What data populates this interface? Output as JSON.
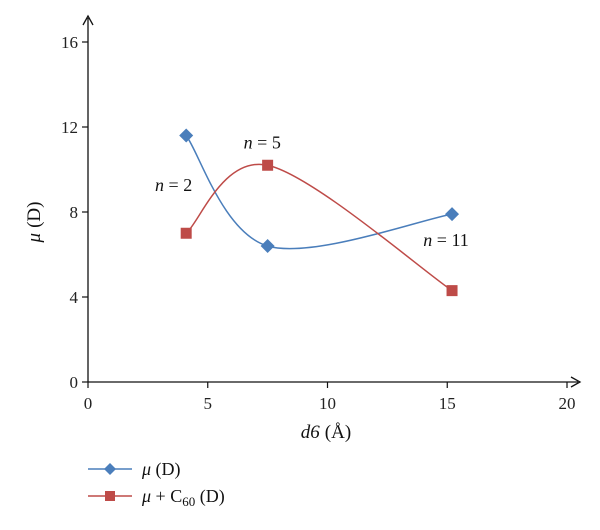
{
  "chart_data": {
    "type": "line",
    "xlabel": {
      "var": "d6",
      "unit": "(Å)"
    },
    "ylabel": {
      "var": "μ",
      "unit": "(D)"
    },
    "xlim": [
      0,
      20
    ],
    "ylim": [
      0,
      16
    ],
    "xticks": [
      0,
      5,
      10,
      15,
      20
    ],
    "yticks": [
      0,
      4,
      8,
      12,
      16
    ],
    "grid": false,
    "legend_position": "bottom-left",
    "series": [
      {
        "name": "μ (D)",
        "name_parts": {
          "var": "μ",
          "rest": " (D)"
        },
        "color": "#4a7ebb",
        "marker": "diamond",
        "x": [
          4.1,
          7.5,
          15.2
        ],
        "y": [
          11.6,
          6.4,
          7.9
        ]
      },
      {
        "name": "μ + C60 (D)",
        "name_parts": {
          "var": "μ",
          "mid": " + C",
          "sub": "60",
          "rest": " (D)"
        },
        "color": "#be4b48",
        "marker": "square",
        "x": [
          4.1,
          7.5,
          15.2
        ],
        "y": [
          7.0,
          10.2,
          4.3
        ]
      }
    ],
    "annotations": [
      {
        "var": "n",
        "text": " = 2",
        "x": 2.8,
        "y": 9.0
      },
      {
        "var": "n",
        "text": " = 5",
        "x": 6.5,
        "y": 11.0
      },
      {
        "var": "n",
        "text": " = 11",
        "x": 14.0,
        "y": 6.4
      }
    ]
  }
}
